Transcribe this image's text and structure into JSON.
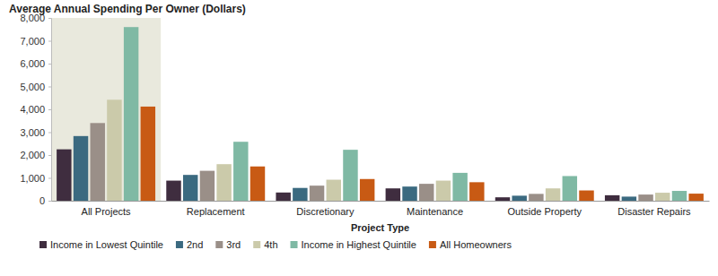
{
  "chart_data": {
    "type": "bar",
    "title": "Average Annual Spending Per Owner (Dollars)",
    "x_label": "Project Type",
    "categories": [
      "All Projects",
      "Replacement",
      "Discretionary",
      "Maintenance",
      "Outside Property",
      "Disaster Repairs"
    ],
    "series": [
      {
        "name": "Income in Lowest Quintile",
        "color": "#3f2d3f",
        "values": [
          2250,
          880,
          360,
          540,
          150,
          240
        ]
      },
      {
        "name": "2nd",
        "color": "#3b6a80",
        "values": [
          2830,
          1130,
          560,
          620,
          220,
          180
        ]
      },
      {
        "name": "3rd",
        "color": "#9a8f88",
        "values": [
          3400,
          1310,
          660,
          740,
          300,
          270
        ]
      },
      {
        "name": "4th",
        "color": "#cbcaaa",
        "values": [
          4420,
          1600,
          920,
          880,
          540,
          350
        ]
      },
      {
        "name": "Income in Highest Quintile",
        "color": "#7fb9a4",
        "values": [
          7600,
          2580,
          2230,
          1220,
          1080,
          430
        ]
      },
      {
        "name": "All Homeowners",
        "color": "#c85a14",
        "values": [
          4120,
          1500,
          950,
          810,
          450,
          310
        ]
      }
    ],
    "ylim": [
      0,
      8000
    ],
    "yticks": [
      0,
      {
        "value": 1000,
        "label": "1,000"
      },
      {
        "value": 2000,
        "label": "2,000"
      },
      {
        "value": 3000,
        "label": "3,000"
      },
      {
        "value": 4000,
        "label": "4,000"
      },
      {
        "value": 5000,
        "label": "5,000"
      },
      {
        "value": 6000,
        "label": "6,000"
      },
      {
        "value": 7000,
        "label": "7,000"
      },
      {
        "value": 8000,
        "label": "8,000"
      }
    ],
    "grid": false,
    "legend": "bottom"
  }
}
